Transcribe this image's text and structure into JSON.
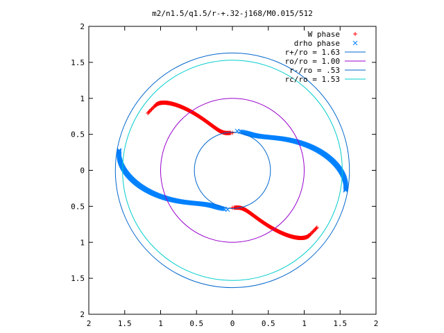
{
  "chart_data": {
    "type": "scatter",
    "title": "m2/n1.5/q1.5/r-+.32-j168/M0.015/512",
    "xlim": [
      -2,
      2
    ],
    "ylim": [
      -2,
      2
    ],
    "x_tick_labels": [
      "2",
      "1.5",
      "1",
      "0.5",
      "0",
      "0.5",
      "1",
      "1.5",
      "2"
    ],
    "y_tick_labels": [
      "2",
      "1.5",
      "1",
      "0.5",
      "0",
      "0.5",
      "1",
      "1.5",
      "2"
    ],
    "grid": false,
    "legend_position": "top-right",
    "series": [
      {
        "name": "W phase",
        "kind": "points",
        "marker": "+",
        "color": "#ff0000",
        "spiral": {
          "r_inner": 0.52,
          "r_outer": 1.4,
          "theta_inner_deg": 90,
          "theta_outer_deg": 140,
          "tail_r": 1.42,
          "tail_theta_deg": 146,
          "arms": [
            0,
            180
          ]
        }
      },
      {
        "name": "drho phase",
        "kind": "points",
        "marker": "x",
        "color": "#0080ff",
        "spiral": {
          "r_inner": 0.55,
          "r_outer": 1.6,
          "theta_inner_deg": 83,
          "theta_outer_deg": -10,
          "arms": [
            0,
            180
          ]
        }
      },
      {
        "name": "r+/ro = 1.63",
        "kind": "circle",
        "r": 1.63,
        "color": "#0066cc"
      },
      {
        "name": "ro/ro = 1.00",
        "kind": "circle",
        "r": 1.0,
        "color": "#9900cc"
      },
      {
        "name": "r-/ro = .53",
        "kind": "circle",
        "r": 0.53,
        "color": "#0066cc"
      },
      {
        "name": "rc/ro = 1.53",
        "kind": "circle",
        "r": 1.53,
        "color": "#00cccc"
      }
    ]
  }
}
